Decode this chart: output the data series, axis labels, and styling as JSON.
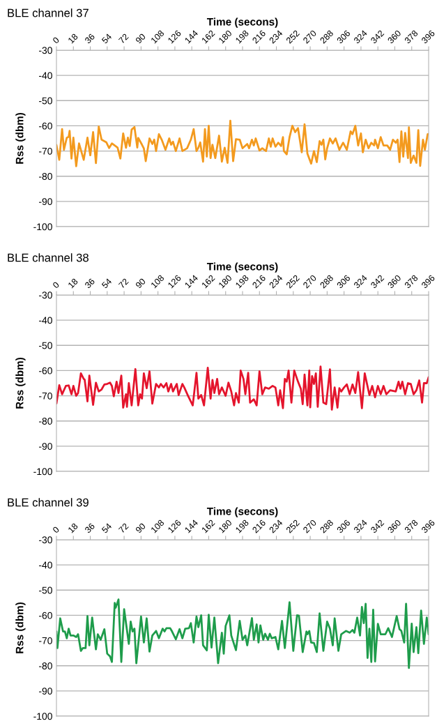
{
  "chart_data": [
    {
      "type": "line",
      "title": "BLE channel 37",
      "xlabel": "Time (secons)",
      "ylabel": "Rss (dbm)",
      "grid": "y",
      "marker": "none",
      "line_style": "solid",
      "xlim": [
        0,
        396
      ],
      "xticks": [
        0,
        18,
        36,
        54,
        72,
        90,
        108,
        126,
        144,
        162,
        180,
        198,
        216,
        234,
        252,
        270,
        288,
        306,
        324,
        342,
        360,
        378,
        396
      ],
      "ylim": [
        -100,
        -30
      ],
      "yticks": [
        -30,
        -40,
        -50,
        -60,
        -70,
        -80,
        -90,
        -100
      ],
      "series": [
        {
          "color": "#f39a1e",
          "x": [
            0,
            3,
            6,
            8,
            11,
            13,
            14,
            16,
            18,
            21,
            24,
            29,
            33,
            36,
            39,
            42,
            45,
            48,
            53,
            56,
            59,
            65,
            68,
            71,
            74,
            76,
            78,
            80,
            83,
            86,
            87,
            91,
            93,
            95,
            99,
            102,
            104,
            106,
            109,
            112,
            116,
            120,
            122,
            124,
            127,
            131,
            134,
            139,
            143,
            146,
            149,
            151,
            153,
            156,
            158,
            160,
            162,
            164,
            166,
            169,
            173,
            176,
            179,
            182,
            185,
            188,
            191,
            195,
            198,
            203,
            205,
            208,
            210,
            212,
            216,
            219,
            223,
            226,
            228,
            230,
            233,
            236,
            239,
            241,
            242,
            245,
            248,
            251,
            254,
            257,
            261,
            264,
            267,
            271,
            274,
            277,
            280,
            282,
            284,
            286,
            288,
            291,
            294,
            297,
            301,
            305,
            309,
            313,
            315,
            318,
            321,
            324,
            326,
            329,
            332,
            335,
            338,
            339,
            342,
            345,
            348,
            352,
            355,
            358,
            361,
            363,
            365,
            367,
            369,
            371,
            374,
            375,
            377,
            380,
            383,
            385,
            387,
            390,
            392,
            395,
            396
          ],
          "values": [
            -67.6,
            -73.5,
            -61.3,
            -69.5,
            -64.7,
            -64.4,
            -62,
            -73,
            -64.7,
            -76,
            -67,
            -73.5,
            -64.7,
            -71.7,
            -62.5,
            -74.8,
            -60.3,
            -65.5,
            -66.5,
            -68.8,
            -67,
            -68.6,
            -73,
            -63,
            -68.7,
            -64.7,
            -68,
            -61.5,
            -60.5,
            -68.6,
            -64.8,
            -67.5,
            -69,
            -74,
            -65,
            -67.2,
            -65.5,
            -70,
            -63.3,
            -65.5,
            -69.5,
            -65,
            -67.5,
            -66.3,
            -70,
            -65,
            -70,
            -68.9,
            -65.5,
            -61.3,
            -70,
            -68.7,
            -66.6,
            -74.2,
            -61.3,
            -72.2,
            -60,
            -72.8,
            -67.5,
            -72.8,
            -63.9,
            -74.2,
            -68.7,
            -74.7,
            -58,
            -74,
            -65.3,
            -65.5,
            -68.9,
            -67.2,
            -68.9,
            -65.5,
            -67.8,
            -65,
            -69.8,
            -68.9,
            -70,
            -65,
            -68.3,
            -65,
            -68.3,
            -66.7,
            -68,
            -64.5,
            -70,
            -71.3,
            -64.5,
            -60,
            -62.5,
            -60.9,
            -70.5,
            -59.4,
            -71,
            -75,
            -70,
            -74.4,
            -66.1,
            -67.5,
            -65.5,
            -73.3,
            -68.9,
            -65,
            -67,
            -65,
            -69.5,
            -66.7,
            -69.5,
            -62.2,
            -63.3,
            -60,
            -67.8,
            -63,
            -70.5,
            -65.5,
            -68.9,
            -66.7,
            -67.8,
            -65.5,
            -68.9,
            -64.5,
            -67.8,
            -67.8,
            -69.5,
            -65.5,
            -66.7,
            -65.5,
            -74.4,
            -62.2,
            -72.2,
            -62.8,
            -72.8,
            -60.6,
            -74.7,
            -71.8,
            -74.7,
            -61.7,
            -75.9,
            -65.5,
            -69.5,
            -63.3,
            -63.3
          ]
        }
      ]
    },
    {
      "type": "line",
      "title": "BLE channel 38",
      "xlabel": "Time (secons)",
      "ylabel": "Rss (dbm)",
      "grid": "y",
      "marker": "none",
      "line_style": "solid",
      "xlim": [
        0,
        396
      ],
      "xticks": [
        0,
        18,
        36,
        54,
        72,
        90,
        108,
        126,
        144,
        162,
        180,
        198,
        216,
        234,
        252,
        270,
        288,
        306,
        324,
        342,
        360,
        378,
        396
      ],
      "ylim": [
        -100,
        -30
      ],
      "yticks": [
        -30,
        -40,
        -50,
        -60,
        -70,
        -80,
        -90,
        -100
      ],
      "series": [
        {
          "color": "#e4142c",
          "x": [
            0,
            3,
            6,
            10,
            13,
            16,
            18,
            21,
            23,
            26,
            29,
            30,
            33,
            35,
            39,
            42,
            45,
            48,
            51,
            54,
            57,
            59,
            61,
            64,
            66,
            69,
            71,
            74,
            75,
            77,
            80,
            84,
            87,
            89,
            91,
            93,
            96,
            99,
            102,
            106,
            109,
            111,
            114,
            117,
            119,
            122,
            124,
            128,
            130,
            134,
            136,
            140,
            145,
            149,
            151,
            154,
            157,
            161,
            164,
            166,
            168,
            171,
            173,
            176,
            180,
            183,
            186,
            189,
            191,
            194,
            196,
            199,
            201,
            204,
            206,
            210,
            213,
            216,
            219,
            222,
            226,
            230,
            233,
            236,
            238,
            241,
            243,
            245,
            247,
            250,
            253,
            257,
            260,
            262,
            264,
            267,
            269,
            270,
            272,
            274,
            276,
            278,
            281,
            284,
            287,
            291,
            293,
            296,
            299,
            301,
            303,
            306,
            309,
            312,
            315,
            318,
            321,
            325,
            328,
            333,
            336,
            339,
            342,
            345,
            348,
            351,
            355,
            361,
            364,
            366,
            368,
            371,
            374,
            377,
            380,
            383,
            386,
            389,
            391,
            394,
            396
          ],
          "values": [
            -73,
            -65.8,
            -69.4,
            -66.1,
            -65.9,
            -69.4,
            -66.1,
            -70,
            -68.9,
            -61.1,
            -63.3,
            -63.6,
            -72.2,
            -62,
            -73.6,
            -64.8,
            -68.3,
            -67.5,
            -65.5,
            -65.3,
            -64.8,
            -66.1,
            -70.2,
            -64.4,
            -68.9,
            -62,
            -74.7,
            -69.4,
            -74.4,
            -65,
            -73.8,
            -59.4,
            -73.8,
            -69.4,
            -71.1,
            -61.1,
            -67,
            -60.3,
            -73.1,
            -65.3,
            -66.7,
            -65.3,
            -66.7,
            -65,
            -68.3,
            -65.3,
            -68.3,
            -65.3,
            -69.7,
            -65.3,
            -66.7,
            -70,
            -73.8,
            -60.9,
            -71.1,
            -69.7,
            -73.8,
            -58.9,
            -71.1,
            -63.7,
            -68.9,
            -63.3,
            -69.4,
            -66.7,
            -70,
            -64.8,
            -68.3,
            -73.8,
            -68.9,
            -72.7,
            -60,
            -63.3,
            -69.4,
            -60.9,
            -72.7,
            -71.4,
            -73.8,
            -60.3,
            -69.4,
            -66.7,
            -67.2,
            -66.1,
            -66.7,
            -73.8,
            -67.8,
            -74.9,
            -63.3,
            -64.4,
            -60,
            -72.7,
            -60,
            -64.4,
            -67.2,
            -73.3,
            -61.6,
            -73.8,
            -60,
            -74.6,
            -62.2,
            -65.3,
            -61.1,
            -74.4,
            -58.4,
            -72.7,
            -73.3,
            -59.5,
            -75.5,
            -66.7,
            -74.7,
            -67,
            -68.3,
            -66.7,
            -65.5,
            -69.4,
            -65.5,
            -68.9,
            -60.6,
            -74.9,
            -61.1,
            -69.7,
            -66.1,
            -70.6,
            -66.1,
            -69.4,
            -66.1,
            -69.4,
            -67.8,
            -68.3,
            -64.4,
            -67.2,
            -64.4,
            -69.4,
            -65,
            -65.3,
            -69.4,
            -67.8,
            -63.9,
            -72.7,
            -65,
            -65,
            -62.6
          ]
        }
      ]
    },
    {
      "type": "line",
      "title": "BLE channel 39",
      "xlabel": "Time (secons)",
      "ylabel": "Rss (dbm)",
      "grid": "y",
      "marker": "none",
      "line_style": "solid",
      "xlim": [
        0,
        396
      ],
      "xticks": [
        0,
        18,
        36,
        54,
        72,
        90,
        108,
        126,
        144,
        162,
        180,
        198,
        216,
        234,
        252,
        270,
        288,
        306,
        324,
        342,
        360,
        378,
        396
      ],
      "ylim": [
        -100,
        -30
      ],
      "yticks": [
        -30,
        -40,
        -50,
        -60,
        -70,
        -80,
        -90,
        -100
      ],
      "series": [
        {
          "color": "#1e9c4b",
          "x": [
            0,
            1,
            4,
            7,
            9,
            11,
            13,
            15,
            18,
            21,
            23,
            26,
            28,
            31,
            33,
            35,
            38,
            42,
            44,
            47,
            51,
            54,
            57,
            59,
            62,
            63,
            66,
            69,
            72,
            77,
            79,
            81,
            83,
            85,
            90,
            93,
            96,
            99,
            102,
            106,
            109,
            113,
            115,
            117,
            121,
            123,
            127,
            131,
            134,
            137,
            141,
            143,
            146,
            149,
            151,
            154,
            156,
            160,
            162,
            165,
            168,
            172,
            176,
            178,
            180,
            184,
            186,
            191,
            195,
            198,
            201,
            203,
            208,
            210,
            213,
            215,
            217,
            220,
            222,
            225,
            227,
            229,
            233,
            236,
            240,
            243,
            248,
            252,
            256,
            258,
            262,
            266,
            267,
            269,
            271,
            274,
            277,
            280,
            284,
            288,
            291,
            294,
            296,
            300,
            303,
            308,
            312,
            315,
            317,
            320,
            323,
            325,
            327,
            329,
            331,
            333,
            335,
            337,
            339,
            342,
            345,
            350,
            353,
            357,
            362,
            365,
            367,
            370,
            372,
            375,
            378,
            380,
            383,
            385,
            388,
            391,
            394,
            396
          ],
          "values": [
            -66.4,
            -73,
            -61.2,
            -66.4,
            -66.4,
            -69.1,
            -65.3,
            -68,
            -68,
            -68.6,
            -67.5,
            -74.1,
            -73,
            -73,
            -60.3,
            -71.9,
            -60.9,
            -73.5,
            -67.5,
            -69.7,
            -65.5,
            -75.2,
            -76.3,
            -78.5,
            -55.1,
            -57,
            -53.7,
            -78.5,
            -57.6,
            -71.3,
            -62.5,
            -66.4,
            -65.3,
            -79,
            -60.5,
            -70.8,
            -61.2,
            -74.4,
            -68,
            -66.2,
            -69.1,
            -65.3,
            -66.4,
            -65.1,
            -65.1,
            -66.4,
            -69.5,
            -65.5,
            -69.1,
            -65.3,
            -65.1,
            -63.1,
            -70.8,
            -60.5,
            -64.7,
            -60,
            -71.9,
            -73.9,
            -59.8,
            -72.8,
            -60.9,
            -79,
            -66.9,
            -75.2,
            -64.2,
            -60,
            -68,
            -73.8,
            -62.2,
            -69.7,
            -68,
            -71.9,
            -61.1,
            -69.7,
            -63.6,
            -70.8,
            -64,
            -69.7,
            -67.3,
            -69.7,
            -67.3,
            -69.1,
            -68.6,
            -73.5,
            -62.2,
            -73,
            -54.8,
            -74.1,
            -60,
            -60.1,
            -74.6,
            -66.4,
            -67.5,
            -66.2,
            -70.8,
            -71,
            -74.6,
            -59.2,
            -74.1,
            -62.5,
            -65.3,
            -71.9,
            -61.2,
            -74.1,
            -67.5,
            -66.2,
            -66.9,
            -65.8,
            -66.9,
            -60.9,
            -68,
            -56.7,
            -63.1,
            -55.4,
            -76.9,
            -65.3,
            -78.5,
            -57.8,
            -78.3,
            -63.4,
            -67.5,
            -67.5,
            -65.1,
            -68.6,
            -60.3,
            -65.5,
            -66.2,
            -70.8,
            -55.4,
            -80.9,
            -63.3,
            -74.6,
            -64.7,
            -75,
            -58.1,
            -71.3,
            -60.9,
            -67.5
          ]
        }
      ]
    }
  ]
}
